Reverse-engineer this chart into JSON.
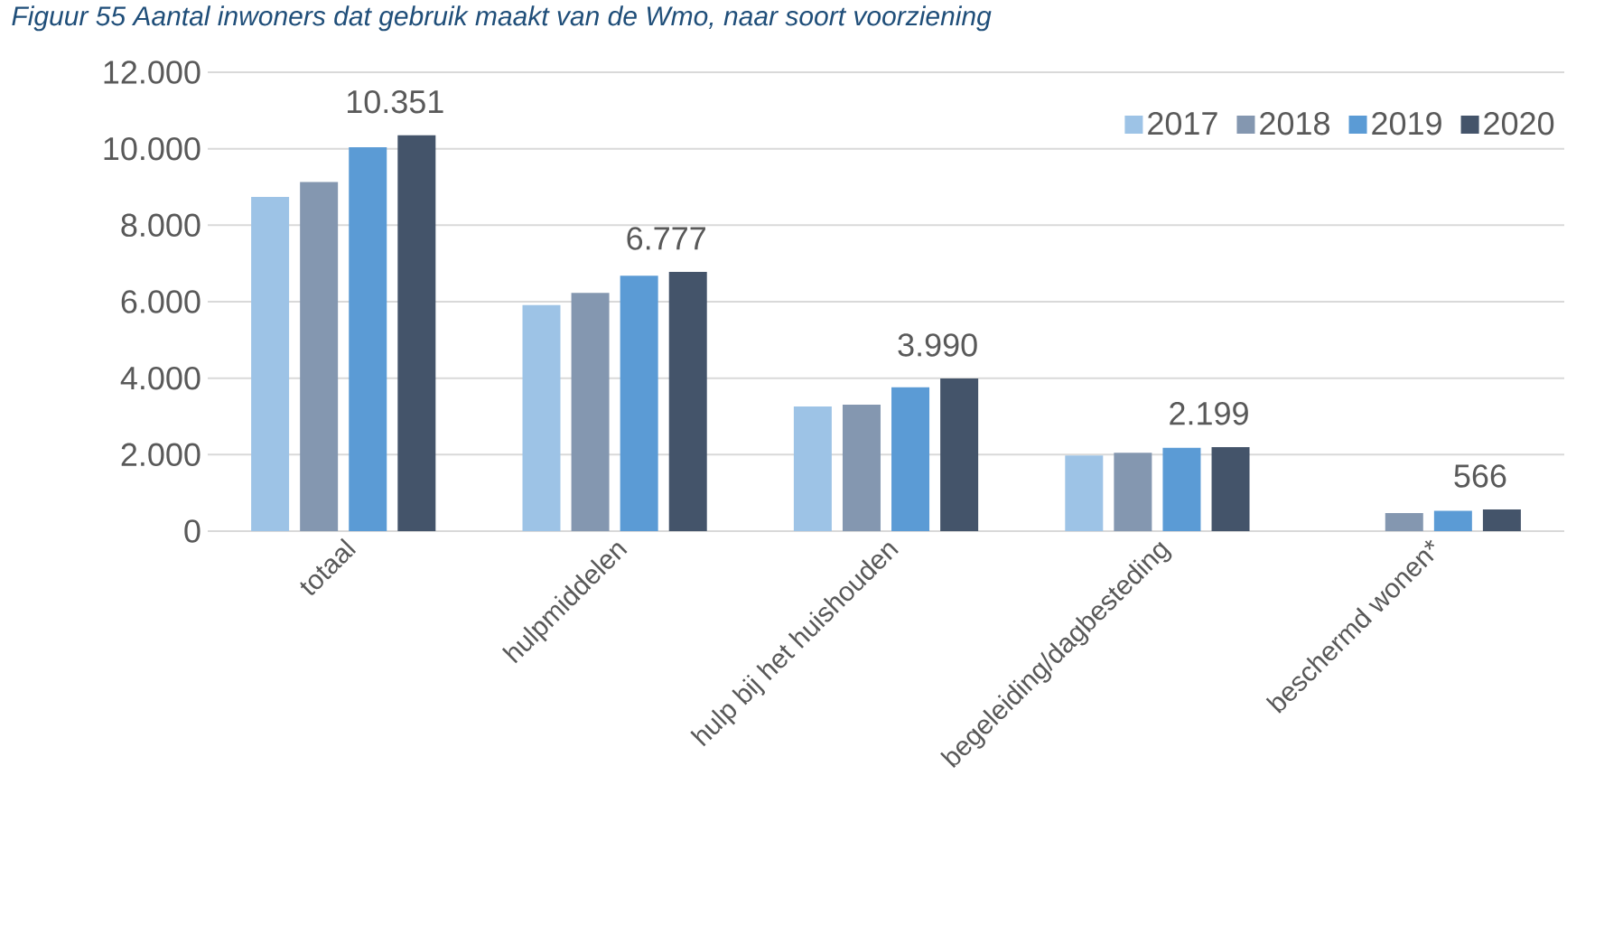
{
  "chart_data": {
    "type": "bar",
    "title": "Figuur 55 Aantal inwoners dat gebruik maakt van de Wmo, naar soort voorziening",
    "categories": [
      "totaal",
      "hulpmiddelen",
      "hulp bij het huishouden",
      "begeleiding/dagbesteding",
      "beschermd wonen*"
    ],
    "series": [
      {
        "name": "2017",
        "color": "#9dc3e6",
        "values": [
          8740,
          5910,
          3260,
          1980,
          null
        ]
      },
      {
        "name": "2018",
        "color": "#8497b0",
        "values": [
          9130,
          6230,
          3310,
          2050,
          470
        ]
      },
      {
        "name": "2019",
        "color": "#5b9bd5",
        "values": [
          10040,
          6680,
          3760,
          2180,
          530
        ]
      },
      {
        "name": "2020",
        "color": "#44546a",
        "values": [
          10351,
          6777,
          3990,
          2199,
          566
        ],
        "value_labels": [
          "10.351",
          "6.777",
          "3.990",
          "2.199",
          "566"
        ]
      }
    ],
    "ylim": [
      0,
      12000
    ],
    "yticks": [
      {
        "value": 0,
        "label": "0"
      },
      {
        "value": 2000,
        "label": "2.000"
      },
      {
        "value": 4000,
        "label": "4.000"
      },
      {
        "value": 6000,
        "label": "6.000"
      },
      {
        "value": 8000,
        "label": "8.000"
      },
      {
        "value": 10000,
        "label": "10.000"
      },
      {
        "value": 12000,
        "label": "12.000"
      }
    ],
    "grid": "y",
    "legend": "top right"
  }
}
